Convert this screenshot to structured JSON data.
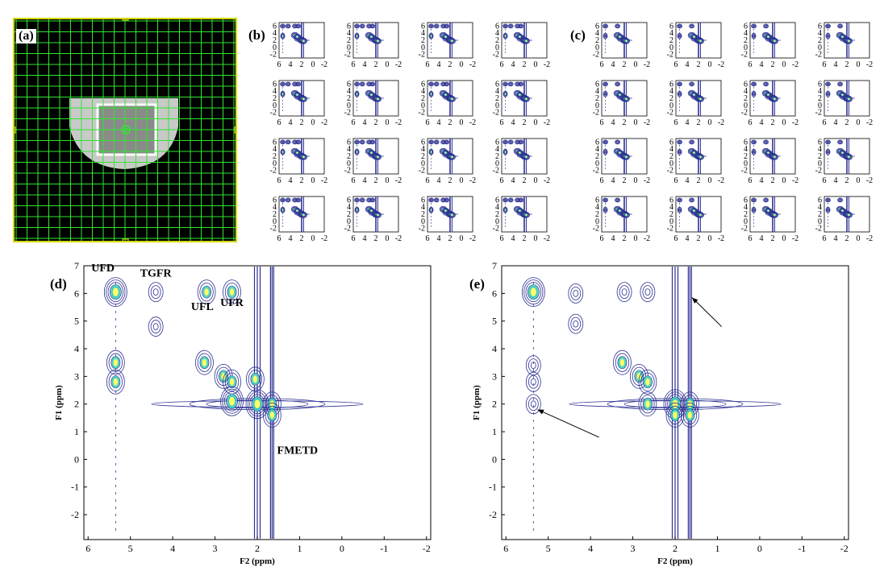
{
  "panel_labels": {
    "a": "(a)",
    "b": "(b)",
    "c": "(c)",
    "d": "(d)",
    "e": "(e)"
  },
  "colors": {
    "contour": "#2e3192",
    "grid": "#2ee82e",
    "frame": "#d8d800",
    "peak_core": "#ffff66",
    "peak_mid": "#3fd0c0"
  },
  "chart_data": [
    {
      "id": "small-grid-b",
      "type": "heatmap",
      "description_rows": 4,
      "description_cols": 4,
      "x_ticks": [
        "6",
        "4",
        "2",
        "0",
        "-2"
      ],
      "y_ticks": [
        "6",
        "4",
        "2",
        "0",
        "-2"
      ],
      "xlim": [
        6,
        -2
      ],
      "ylim": [
        -3,
        7
      ]
    },
    {
      "id": "small-grid-c",
      "type": "heatmap",
      "description_rows": 4,
      "description_cols": 4,
      "x_ticks": [
        "6",
        "4",
        "2",
        "0",
        "-2"
      ],
      "y_ticks": [
        "6",
        "4",
        "2",
        "0",
        "-2"
      ],
      "xlim": [
        6,
        -2
      ],
      "ylim": [
        -3,
        7
      ]
    },
    {
      "id": "spectrum-d",
      "type": "heatmap",
      "xlabel": "F2 (ppm)",
      "ylabel": "F1 (ppm)",
      "xlim": [
        6.1,
        -2.1
      ],
      "ylim": [
        -2.9,
        7
      ],
      "x_ticks": [
        "6",
        "5",
        "4",
        "3",
        "2",
        "1",
        "0",
        "-1",
        "-2"
      ],
      "y_ticks": [
        "7",
        "6",
        "5",
        "4",
        "3",
        "2",
        "1",
        "0",
        "-1",
        "-2"
      ],
      "annotations": [
        {
          "text": "UFD",
          "x": 5.65,
          "y": 6.8
        },
        {
          "text": "TGFR",
          "x": 4.4,
          "y": 6.6
        },
        {
          "text": "UFL",
          "x": 3.3,
          "y": 5.4
        },
        {
          "text": "UFR",
          "x": 2.6,
          "y": 5.55
        },
        {
          "text": "FMETD",
          "x": 1.05,
          "y": 0.2
        }
      ],
      "peaks": [
        {
          "x": 5.35,
          "y": 6.05,
          "level": "core"
        },
        {
          "x": 5.35,
          "y": 3.5,
          "level": "mid"
        },
        {
          "x": 5.35,
          "y": 2.8,
          "level": "mid"
        },
        {
          "x": 4.4,
          "y": 6.05,
          "level": "low"
        },
        {
          "x": 4.4,
          "y": 4.8,
          "level": "low"
        },
        {
          "x": 3.2,
          "y": 6.05,
          "level": "mid"
        },
        {
          "x": 2.6,
          "y": 6.05,
          "level": "mid"
        },
        {
          "x": 3.25,
          "y": 3.5,
          "level": "mid"
        },
        {
          "x": 2.8,
          "y": 3.0,
          "level": "mid"
        },
        {
          "x": 2.6,
          "y": 2.8,
          "level": "mid"
        },
        {
          "x": 2.6,
          "y": 2.1,
          "level": "core"
        },
        {
          "x": 2.05,
          "y": 2.9,
          "level": "mid"
        },
        {
          "x": 2.0,
          "y": 2.0,
          "level": "core"
        },
        {
          "x": 1.65,
          "y": 2.0,
          "level": "mid"
        },
        {
          "x": 1.65,
          "y": 1.6,
          "level": "mid"
        }
      ],
      "lines_x": [
        2.0,
        1.65
      ],
      "diag_y": 2.0
    },
    {
      "id": "spectrum-e",
      "type": "heatmap",
      "xlabel": "F2 (ppm)",
      "ylabel": "F1 (ppm)",
      "xlim": [
        6.1,
        -2.1
      ],
      "ylim": [
        -2.9,
        7
      ],
      "x_ticks": [
        "6",
        "5",
        "4",
        "3",
        "2",
        "1",
        "0",
        "-1",
        "-2"
      ],
      "y_ticks": [
        "7",
        "6",
        "5",
        "4",
        "3",
        "2",
        "1",
        "0",
        "-1",
        "-2"
      ],
      "peaks": [
        {
          "x": 5.35,
          "y": 6.05,
          "level": "core"
        },
        {
          "x": 5.35,
          "y": 3.4,
          "level": "low"
        },
        {
          "x": 5.35,
          "y": 2.8,
          "level": "low"
        },
        {
          "x": 5.35,
          "y": 2.0,
          "level": "low"
        },
        {
          "x": 4.35,
          "y": 6.0,
          "level": "low"
        },
        {
          "x": 4.35,
          "y": 4.9,
          "level": "low"
        },
        {
          "x": 3.2,
          "y": 6.05,
          "level": "low"
        },
        {
          "x": 2.65,
          "y": 6.05,
          "level": "low"
        },
        {
          "x": 3.25,
          "y": 3.5,
          "level": "mid"
        },
        {
          "x": 2.85,
          "y": 3.0,
          "level": "mid"
        },
        {
          "x": 2.65,
          "y": 2.8,
          "level": "mid"
        },
        {
          "x": 2.65,
          "y": 2.0,
          "level": "mid"
        },
        {
          "x": 2.0,
          "y": 2.0,
          "level": "core"
        },
        {
          "x": 1.65,
          "y": 2.0,
          "level": "mid"
        },
        {
          "x": 1.65,
          "y": 1.6,
          "level": "mid"
        },
        {
          "x": 2.0,
          "y": 1.6,
          "level": "mid"
        }
      ],
      "lines_x": [
        2.0,
        1.65
      ],
      "diag_y": 2.0,
      "arrows": [
        {
          "from": [
            3.8,
            0.8
          ],
          "to": [
            5.25,
            1.8
          ]
        },
        {
          "from": [
            0.9,
            4.8
          ],
          "to": [
            1.6,
            5.85
          ]
        }
      ]
    }
  ]
}
